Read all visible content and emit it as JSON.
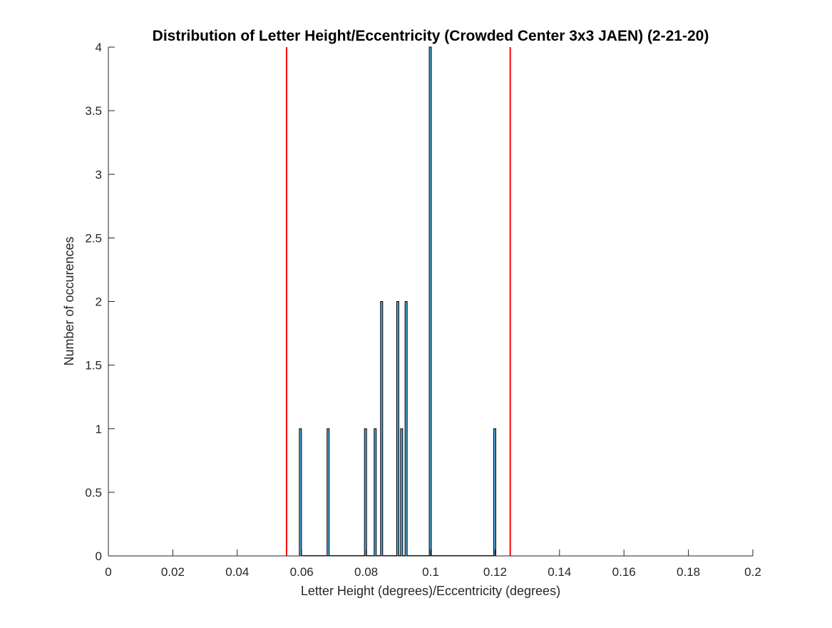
{
  "chart_data": {
    "type": "bar",
    "title": "Distribution of Letter Height/Eccentricity (Crowded Center 3x3 JAEN) (2-21-20)",
    "xlabel": "Letter Height (degrees)/Eccentricity (degrees)",
    "ylabel": "Number of occurences",
    "xlim": [
      0,
      0.2
    ],
    "ylim": [
      0,
      4
    ],
    "xticks": [
      0,
      0.02,
      0.04,
      0.06,
      0.08,
      0.1,
      0.12,
      0.14,
      0.16,
      0.18,
      0.2
    ],
    "xtick_labels": [
      "0",
      "0.02",
      "0.04",
      "0.06",
      "0.08",
      "0.1",
      "0.12",
      "0.14",
      "0.16",
      "0.18",
      "0.2"
    ],
    "yticks": [
      0,
      0.5,
      1,
      1.5,
      2,
      2.5,
      3,
      3.5,
      4
    ],
    "ytick_labels": [
      "0",
      "0.5",
      "1",
      "1.5",
      "2",
      "2.5",
      "3",
      "3.5",
      "4"
    ],
    "grid": false,
    "bar_color": "#4da6d9",
    "bar_edge_color": "#000000",
    "line_color": "#ff0000",
    "series": [
      {
        "x": [
          0.0596,
          0.0682,
          0.0798,
          0.0828,
          0.0848,
          0.0898,
          0.091,
          0.0924,
          0.0999,
          0.1199
        ],
        "values": [
          1,
          1,
          1,
          1,
          2,
          2,
          1,
          2,
          4,
          1
        ]
      }
    ],
    "reference_lines_x": [
      0.0553,
      0.1247
    ]
  }
}
